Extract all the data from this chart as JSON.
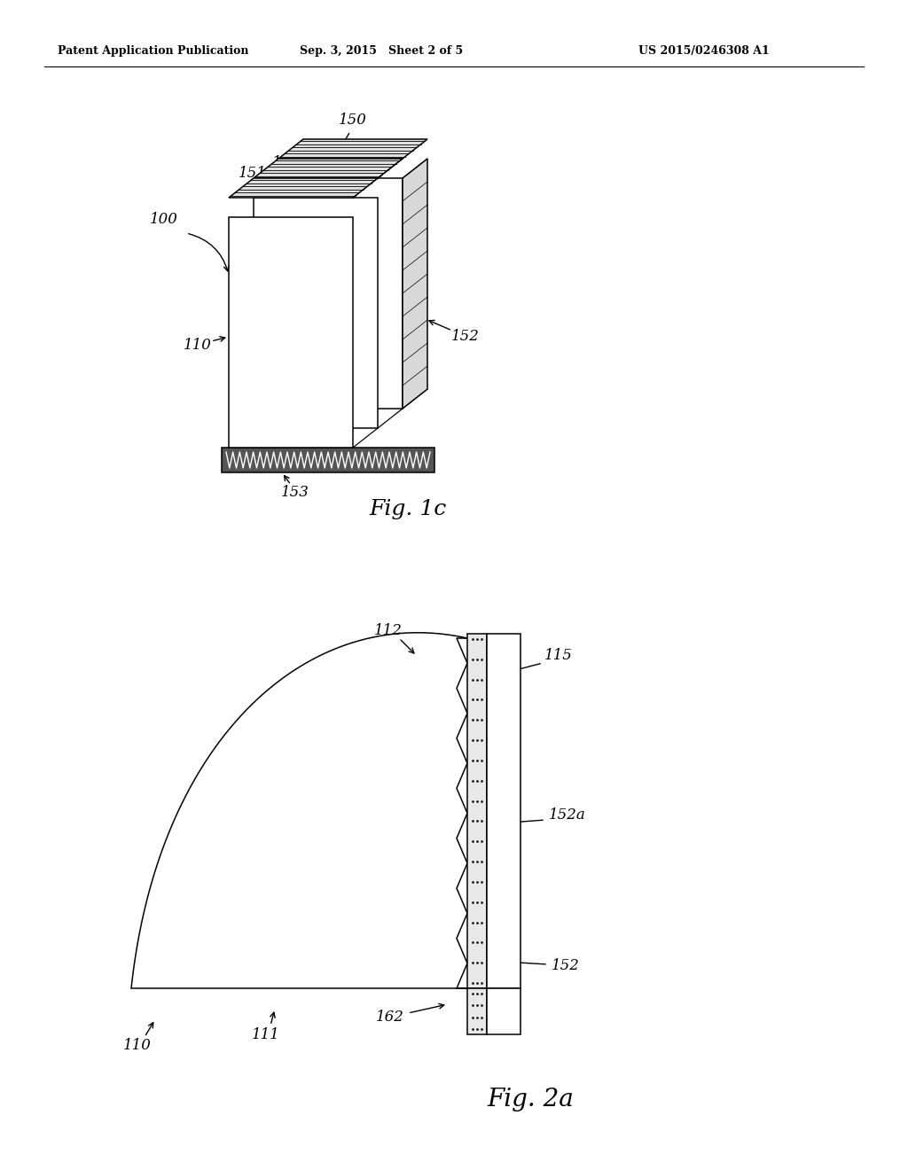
{
  "bg_color": "#ffffff",
  "header_left": "Patent Application Publication",
  "header_center": "Sep. 3, 2015   Sheet 2 of 5",
  "header_right": "US 2015/0246308 A1",
  "fig1c_label": "Fig. 1c",
  "fig2a_label": "Fig. 2a",
  "lw": 1.1
}
